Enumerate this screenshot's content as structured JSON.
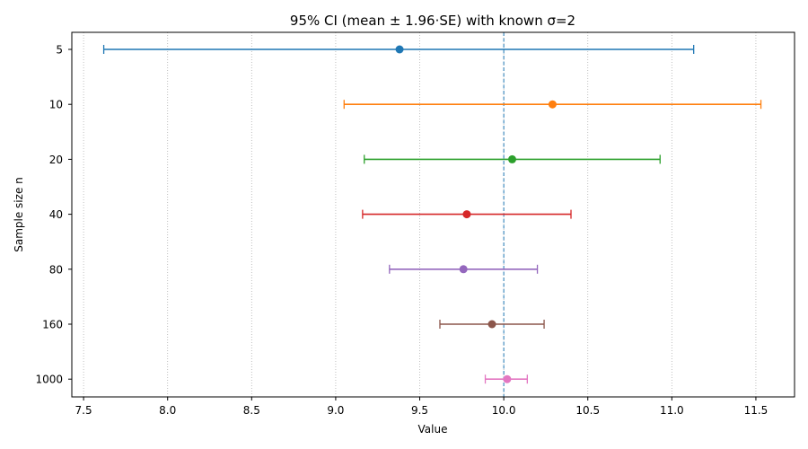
{
  "chart_data": {
    "type": "errorbar",
    "title": "95% CI (mean ± 1.96·SE) with known σ=2",
    "xlabel": "Value",
    "ylabel": "Sample size n",
    "xlim": [
      7.43,
      11.73
    ],
    "xticks": [
      7.5,
      8.0,
      8.5,
      9.0,
      9.5,
      10.0,
      10.5,
      11.0,
      11.5
    ],
    "xtick_labels": [
      "7.5",
      "8.0",
      "8.5",
      "9.0",
      "9.5",
      "10.0",
      "10.5",
      "11.0",
      "11.5"
    ],
    "grid": "x-dotted",
    "reference_line": {
      "x": 10.0,
      "style": "dashed",
      "color": "#1f77b4"
    },
    "rows": [
      {
        "n": "5",
        "mean": 9.38,
        "lower": 7.62,
        "upper": 11.13,
        "color": "#1f77b4"
      },
      {
        "n": "10",
        "mean": 10.29,
        "lower": 9.05,
        "upper": 11.53,
        "color": "#ff7f0e"
      },
      {
        "n": "20",
        "mean": 10.05,
        "lower": 9.17,
        "upper": 10.93,
        "color": "#2ca02c"
      },
      {
        "n": "40",
        "mean": 9.78,
        "lower": 9.16,
        "upper": 10.4,
        "color": "#d62728"
      },
      {
        "n": "80",
        "mean": 9.76,
        "lower": 9.32,
        "upper": 10.2,
        "color": "#9467bd"
      },
      {
        "n": "160",
        "mean": 9.93,
        "lower": 9.62,
        "upper": 10.24,
        "color": "#8c564b"
      },
      {
        "n": "1000",
        "mean": 10.02,
        "lower": 9.89,
        "upper": 10.14,
        "color": "#e377c2"
      }
    ]
  }
}
